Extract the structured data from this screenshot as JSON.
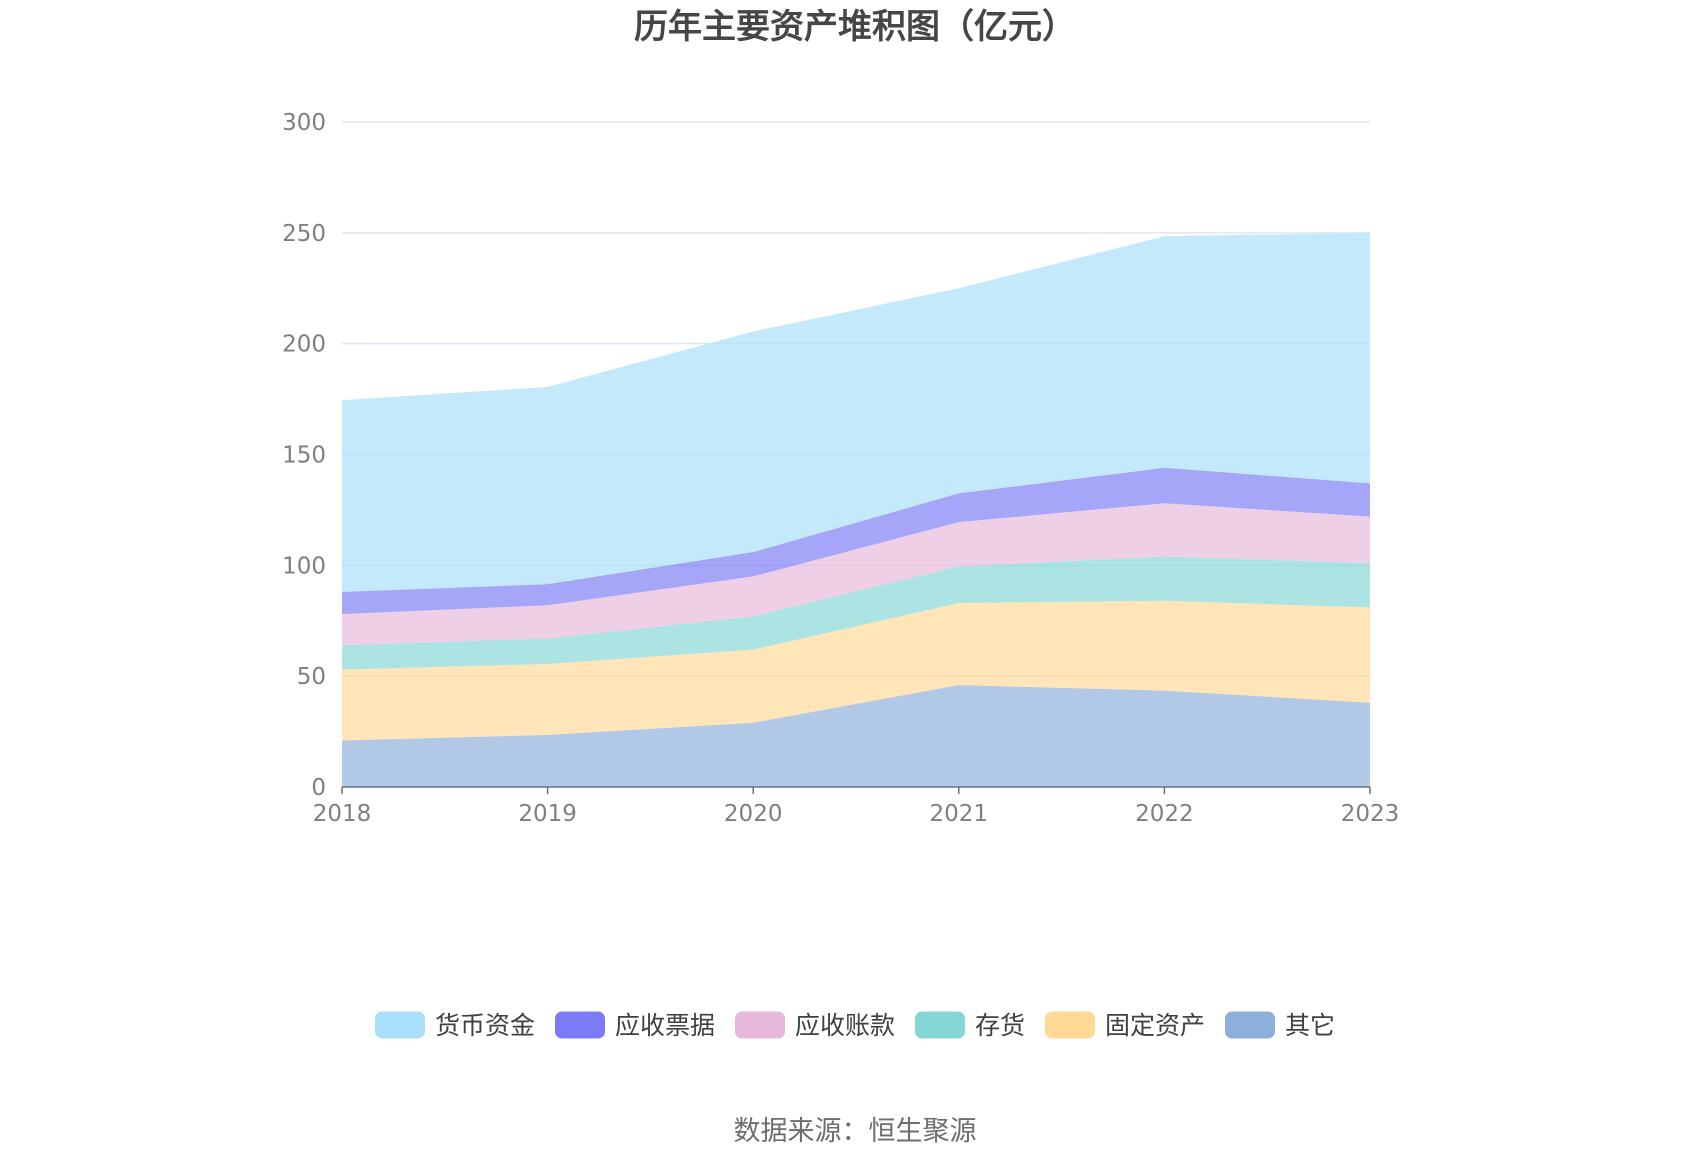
{
  "chart_data": {
    "type": "area",
    "stacked": true,
    "title": "历年主要资产堆积图（亿元）",
    "x": [
      "2018",
      "2019",
      "2020",
      "2021",
      "2022",
      "2023"
    ],
    "ylim": [
      0,
      300
    ],
    "yticks": [
      "0",
      "50",
      "100",
      "150",
      "200",
      "250",
      "300"
    ],
    "grid": true,
    "legend_position": "bottom",
    "series": [
      {
        "name": "其它",
        "color": "#8eaedb",
        "values": [
          21,
          23.5,
          29,
          46,
          43.5,
          38
        ]
      },
      {
        "name": "固定资产",
        "color": "#ffd995",
        "values": [
          32,
          32,
          33,
          37,
          40.5,
          43
        ]
      },
      {
        "name": "存货",
        "color": "#85d7d6",
        "values": [
          11,
          11.5,
          15,
          16.5,
          20,
          20
        ]
      },
      {
        "name": "应收账款",
        "color": "#e8b8da",
        "values": [
          14,
          15,
          18,
          20,
          24,
          21
        ]
      },
      {
        "name": "应收票据",
        "color": "#7b7cf5",
        "values": [
          10,
          9.5,
          11,
          13,
          16,
          15
        ]
      },
      {
        "name": "货币资金",
        "color": "#a8dff9",
        "values": [
          86.5,
          89,
          99.5,
          92.5,
          104.5,
          113
        ]
      }
    ],
    "legend_order": [
      "货币资金",
      "应收票据",
      "应收账款",
      "存货",
      "固定资产",
      "其它"
    ]
  },
  "source": "数据来源：恒生聚源"
}
